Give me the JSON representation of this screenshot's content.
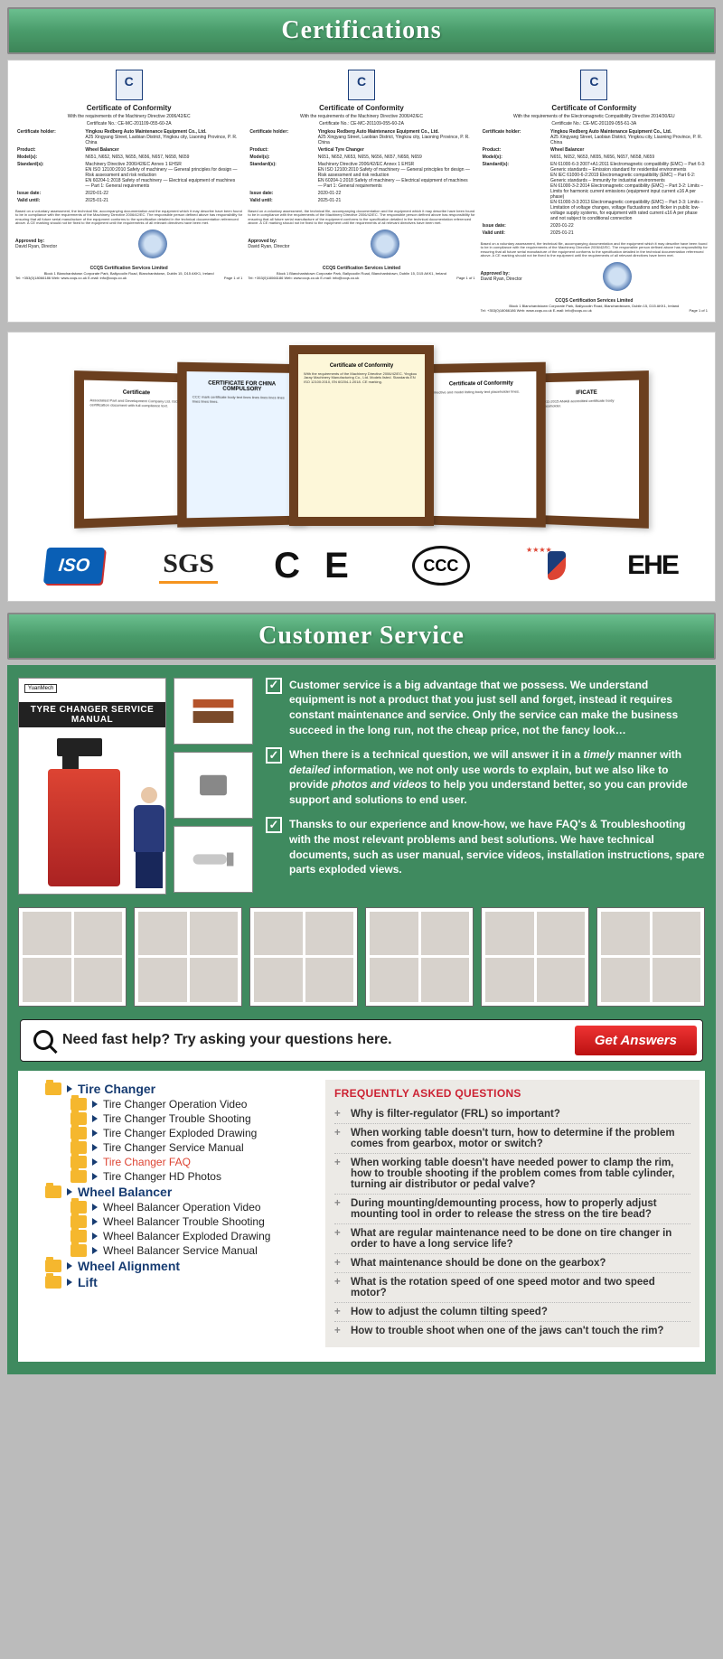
{
  "headers": {
    "cert": "Certifications",
    "cs": "Customer Service"
  },
  "cert_card": {
    "title": "Certificate of Conformity",
    "subA": "With the requirements of the Machinery Directive 2006/42/EC",
    "subB": "With the requirements of the Electromagnetic Compatibility Directive 2014/30/EU",
    "refA": "Certificate No.: CE-MC-201109-055-60-2A",
    "refB": "Certificate No.: CE-MC-201109-055-60-2A",
    "refC": "Certificate No.: CE-MC-201109-055-61-3A",
    "holder_label": "Certificate holder:",
    "holder": "Yingkou Redberg Auto Maintenance Equipment Co., Ltd.",
    "addr": "A25 Xingyang Street, Laobian District, Yingkou city, Liaoning Province, P. R. China",
    "product_label": "Product:",
    "productA": "Wheel Balancer",
    "productB": "Vertical Tyre Changer",
    "productC": "Wheel Balancer",
    "models_label": "Model(s):",
    "models": "N651, N652, N653, N655, N656, N657, N658, N659",
    "std_label": "Standard(s):",
    "stdA": "Machinery Directive 2006/42/EC Annex 1 EHSR\nEN ISO 12100:2010 Safety of machinery — General principles for design — Risk assessment and risk reduction\nEN 60204-1:2018 Safety of machinery — Electrical equipment of machines — Part 1: General requirements",
    "stdC": "EN 61000-6-3:2007+A1:2011 Electromagnetic compatibility (EMC) – Part 6-3: Generic standards – Emission standard for residential environments\nEN IEC 61000-6-2:2019 Electromagnetic compatibility (EMC) – Part 6-2: Generic standards – Immunity for industrial environments\nEN 61000-3-2:2014 Electromagnetic compatibility (EMC) – Part 3-2: Limits – Limits for harmonic current emissions (equipment input current ≤16 A per phase)\nEN 61000-3-3:2013 Electromagnetic compatibility (EMC) – Part 3-3: Limits – Limitation of voltage changes, voltage fluctuations and flicker in public low-voltage supply systems, for equipment with rated current ≤16 A per phase and not subject to conditional connection",
    "issue_label": "Issue date:",
    "issueA": "2020-01-22",
    "issueC": "2020-01-22",
    "valid_label": "Valid until:",
    "valid": "2025-01-21",
    "fine": "Based on a voluntary assessment, the technical file, accompanying documentation and the equipment which it may describe have been found to be in compliance with the requirements of the Machinery Directive 2006/42/EC. The responsible person defined above has responsibility for ensuring that all future serial manufacture of the equipment conforms to the specification detailed in the technical documentation referenced above. A CE marking should not be fixed to the equipment until the requirements of all relevant directives have been met.",
    "approved": "Approved by:",
    "signer": "David Ryan, Director",
    "footer_org": "CCQS Certification Services Limited",
    "footer_addr": "Block 1 Blanchardstown Corporate Park, Ballycoolin Road, Blanchardstown, Dublin 15, D15 AKK1, Ireland",
    "footer_meta": "Tel: +353(0)18066186    Web: www.ccqs.co.uk    E-mail: info@ccqs.co.uk",
    "footer_pg": "Page 1 of 1"
  },
  "logos": {
    "iso": "ISO",
    "sgs": "SGS",
    "ce": "C E",
    "ccc": "CCC",
    "eac": "EHE"
  },
  "manual_title": "TYRE CHANGER SERVICE MANUAL",
  "bullets": {
    "b1": "Customer service is a big advantage that we possess. We understand equipment is not a product that you just sell and forget, instead it requires constant maintenance and service. Only the service can make the business succeed in the long run, not the cheap price, not the fancy look…",
    "b2a": "When there is a technical question, we will answer it in a ",
    "b2b": "timely",
    "b2c": " manner with ",
    "b2d": "detailed",
    "b2e": " information, we not only use words to explain, but we also like to provide ",
    "b2f": "photos and videos",
    "b2g": " to help you understand better, so you can provide support and solutions to end user.",
    "b3": "Thansks to our experience and know-how, we have FAQ's & Troubleshooting with the most relevant problems and best solutions. We have technical documents, such as user manual, service videos, installation instructions, spare parts exploded views."
  },
  "help": {
    "text": "Need fast help? Try asking your questions here.",
    "btn": "Get Answers"
  },
  "tree": {
    "r1": "Tire Changer",
    "r1_items": [
      "Tire Changer Operation Video",
      "Tire Changer Trouble Shooting",
      "Tire Changer Exploded Drawing",
      "Tire Changer Service Manual",
      "Tire Changer FAQ",
      "Tire Changer HD Photos"
    ],
    "r2": "Wheel Balancer",
    "r2_items": [
      "Wheel Balancer Operation Video",
      "Wheel Balancer Trouble Shooting",
      "Wheel Balancer Exploded Drawing",
      "Wheel Balancer Service Manual"
    ],
    "r3": "Wheel Alignment",
    "r4": "Lift"
  },
  "faq": {
    "title": "FREQUENTLY ASKED QUESTIONS",
    "items": [
      "Why is filter-regulator (FRL) so important?",
      "When working table doesn't turn, how to determine if the problem comes from gearbox, motor or switch?",
      "When working table doesn't have needed power to clamp the rim, how to trouble shooting if the problem comes from table cylinder, turning air distributor or pedal valve?",
      "During mounting/demounting process, how to properly adjust mounting tool in order to release the stress on the tire bead?",
      "What are regular maintenance need to be done on tire changer in order to have a long service life?",
      "What maintenance should be done on the gearbox?",
      "What is the rotation speed of one speed motor and two speed motor?",
      "How to adjust the column tilting speed?",
      "How to trouble shoot when one of the jaws can't touch the rim?"
    ]
  }
}
